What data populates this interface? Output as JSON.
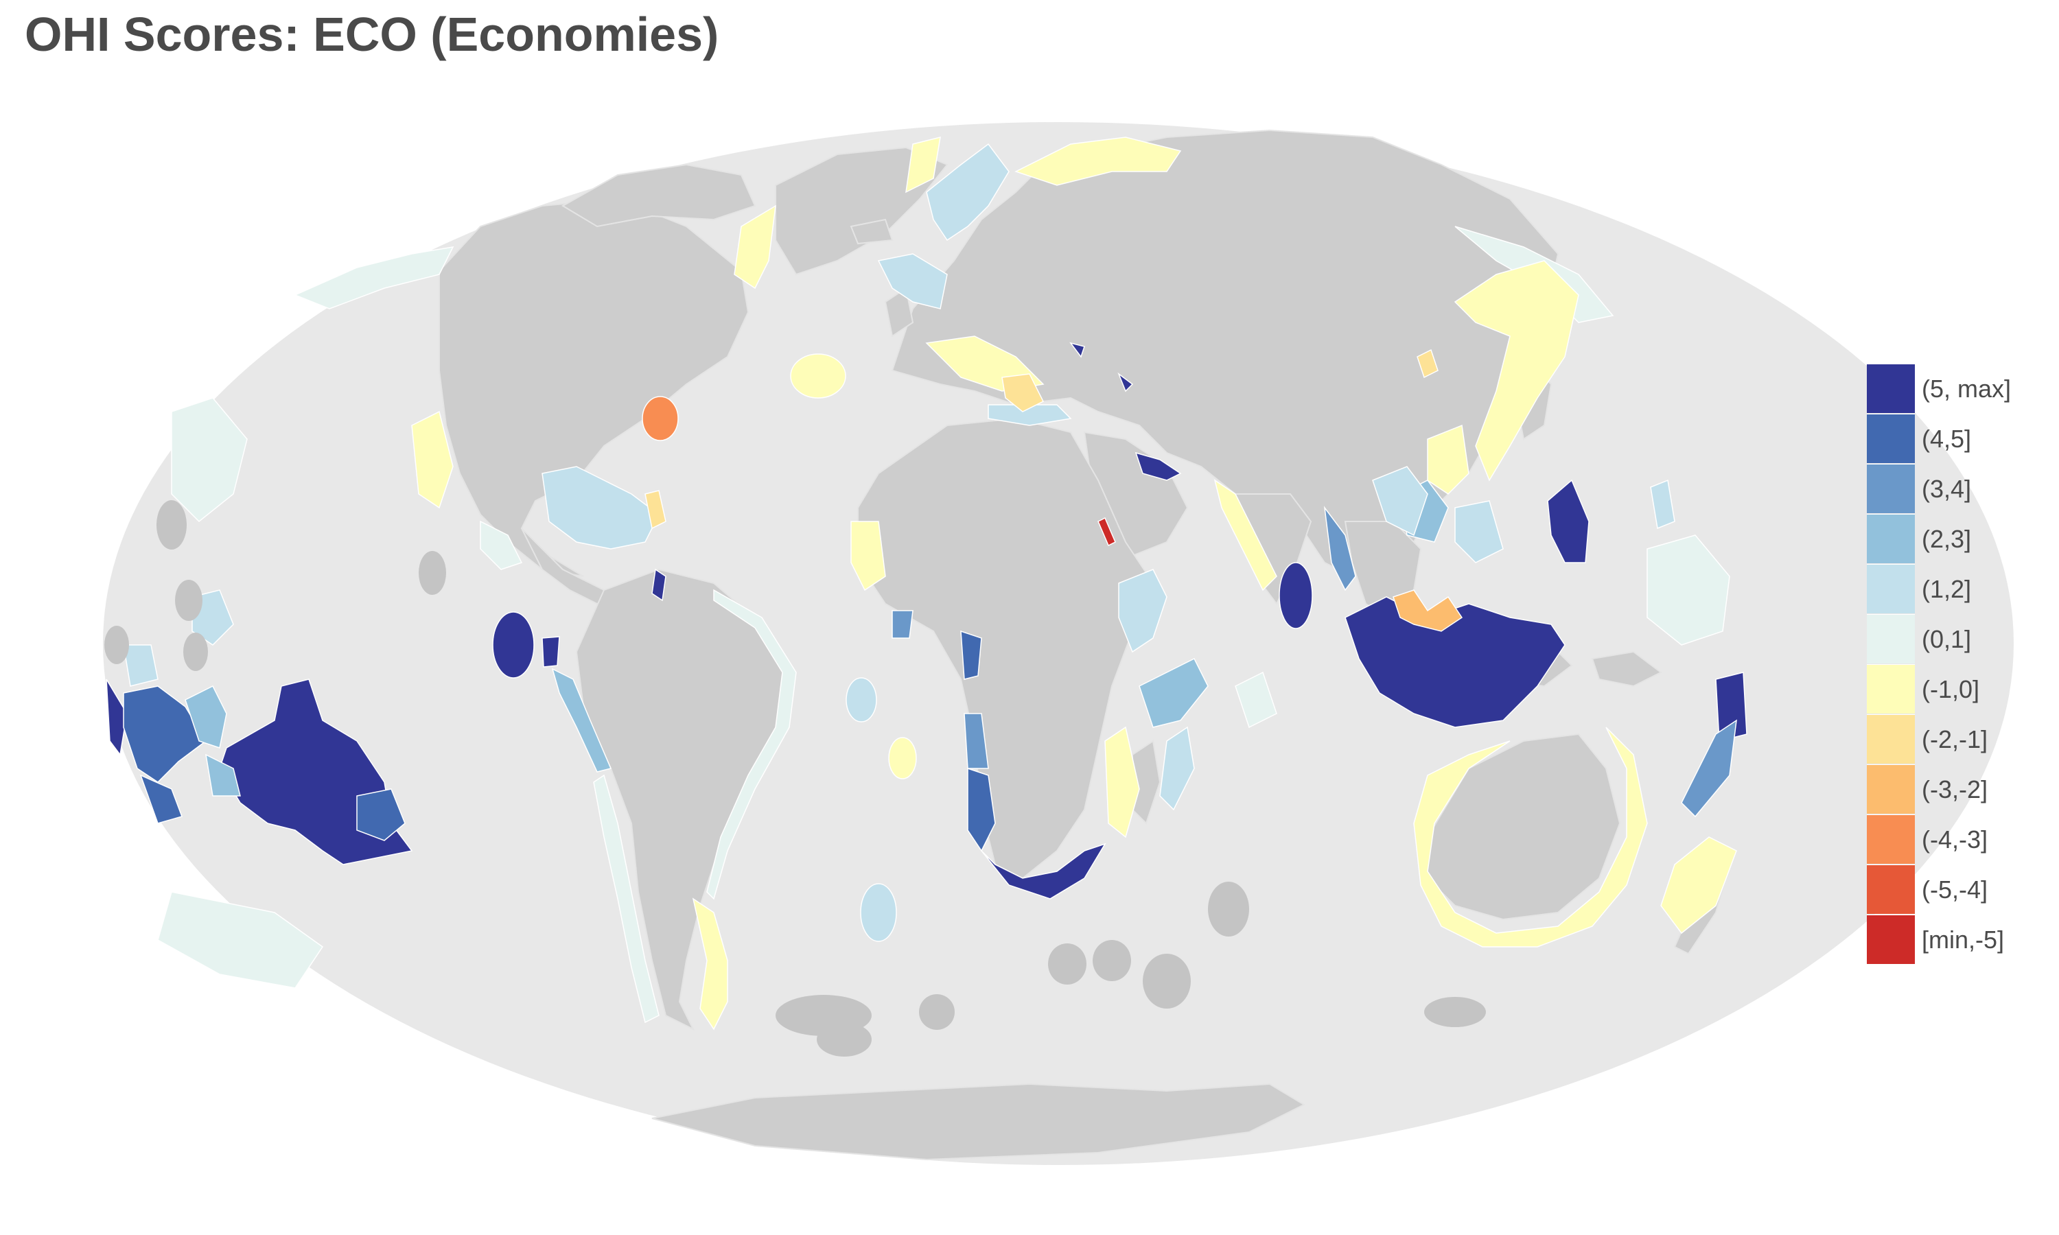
{
  "title": "OHI Scores: ECO (Economies)",
  "colors": {
    "ocean": "#e8e8e8",
    "land": "#cdcdcd",
    "land_border": "#e4e4e4",
    "no_data": "#c4c4c4"
  },
  "legend": {
    "items": [
      {
        "label": "(5, max]",
        "color": "#313695"
      },
      {
        "label": "(4,5]",
        "color": "#4169b0"
      },
      {
        "label": "(3,4]",
        "color": "#6a98c9"
      },
      {
        "label": "(2,3]",
        "color": "#92c1dc"
      },
      {
        "label": "(1,2]",
        "color": "#c2e0ec"
      },
      {
        "label": "(0,1]",
        "color": "#e6f3f0"
      },
      {
        "label": "(-1,0]",
        "color": "#fefdb8"
      },
      {
        "label": "(-2,-1]",
        "color": "#fde296"
      },
      {
        "label": "(-3,-2]",
        "color": "#fcbc6e"
      },
      {
        "label": "(-4,-3]",
        "color": "#f88d52"
      },
      {
        "label": "(-5,-4]",
        "color": "#e65837"
      },
      {
        "label": "[min,-5]",
        "color": "#cd2b28"
      }
    ]
  }
}
